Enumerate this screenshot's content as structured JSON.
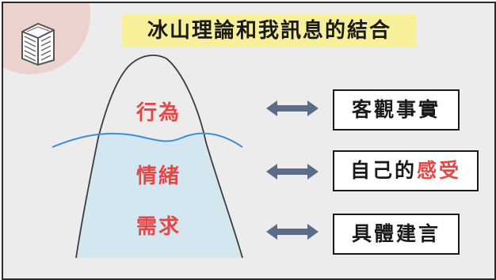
{
  "title": "冰山理論和我訊息的結合",
  "iceberg_layers": [
    "行為",
    "情緒",
    "需求"
  ],
  "mappings": [
    {
      "text": "客觀事實"
    },
    {
      "prefix": "自己的",
      "highlight": "感受"
    },
    {
      "text": "具體建言"
    }
  ],
  "colors": {
    "background": "#ececec",
    "title_highlight": "#f7ef9a",
    "layer_text": "#e84545",
    "water_line": "#3a8fd6",
    "underwater": "#d4e7f0",
    "arrow": "#5b6c8a",
    "corner_blob": "#ecd2cc"
  },
  "icons": [
    "cube-sketch-icon",
    "double-arrow-icon"
  ]
}
